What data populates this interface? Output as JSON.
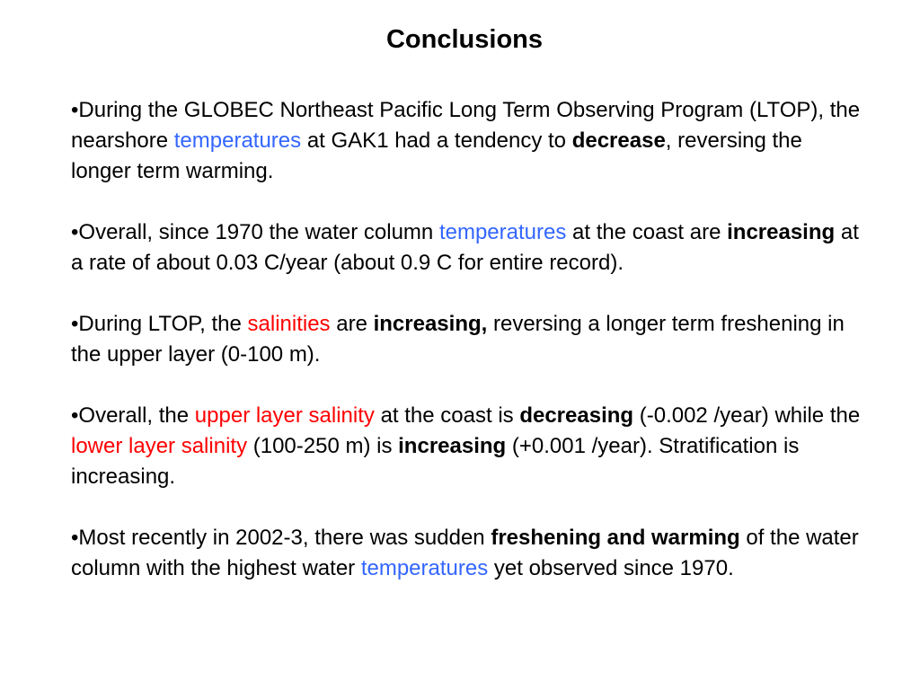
{
  "slide": {
    "title": "Conclusions",
    "bullet_glyph": "•",
    "colors": {
      "text": "#000000",
      "blue_highlight": "#3366ff",
      "red_highlight": "#ff0000",
      "background": "#ffffff"
    },
    "bullets": [
      {
        "segments": [
          {
            "text": "During the GLOBEC Northeast Pacific Long Term Observing Program (LTOP), the nearshore ",
            "style": "plain"
          },
          {
            "text": "temperatures",
            "style": "blue"
          },
          {
            "text": " at GAK1 had a tendency to ",
            "style": "plain"
          },
          {
            "text": "decrease",
            "style": "bold"
          },
          {
            "text": ", reversing the longer term warming.",
            "style": "plain"
          }
        ]
      },
      {
        "segments": [
          {
            "text": "Overall, since 1970 the water column ",
            "style": "plain"
          },
          {
            "text": "temperatures",
            "style": "blue"
          },
          {
            "text": " at the coast are ",
            "style": "plain"
          },
          {
            "text": "increasing",
            "style": "bold"
          },
          {
            "text": " at a rate of about 0.03 C/year (about 0.9 C for entire record).",
            "style": "plain"
          }
        ]
      },
      {
        "segments": [
          {
            "text": "During LTOP, the ",
            "style": "plain"
          },
          {
            "text": "salinities",
            "style": "red"
          },
          {
            "text": " are ",
            "style": "plain"
          },
          {
            "text": "increasing,",
            "style": "bold"
          },
          {
            "text": " reversing a longer term freshening in the upper layer (0-100 m).",
            "style": "plain"
          }
        ]
      },
      {
        "segments": [
          {
            "text": "Overall, the ",
            "style": "plain"
          },
          {
            "text": "upper layer salinity",
            "style": "red"
          },
          {
            "text": " at the coast is ",
            "style": "plain"
          },
          {
            "text": "decreasing",
            "style": "bold"
          },
          {
            "text": " (-0.002 /year) while the ",
            "style": "plain"
          },
          {
            "text": "lower layer salinity",
            "style": "red"
          },
          {
            "text": " (100-250 m) is ",
            "style": "plain"
          },
          {
            "text": "increasing",
            "style": "bold"
          },
          {
            "text": " (+0.001 /year).  Stratification is increasing.",
            "style": "plain"
          }
        ]
      },
      {
        "segments": [
          {
            "text": "Most recently in 2002-3, there was sudden ",
            "style": "plain"
          },
          {
            "text": "freshening and warming",
            "style": "bold"
          },
          {
            "text": " of the water column with the highest water ",
            "style": "plain"
          },
          {
            "text": "temperatures",
            "style": "blue"
          },
          {
            "text": " yet observed since 1970.",
            "style": "plain"
          }
        ]
      }
    ]
  }
}
